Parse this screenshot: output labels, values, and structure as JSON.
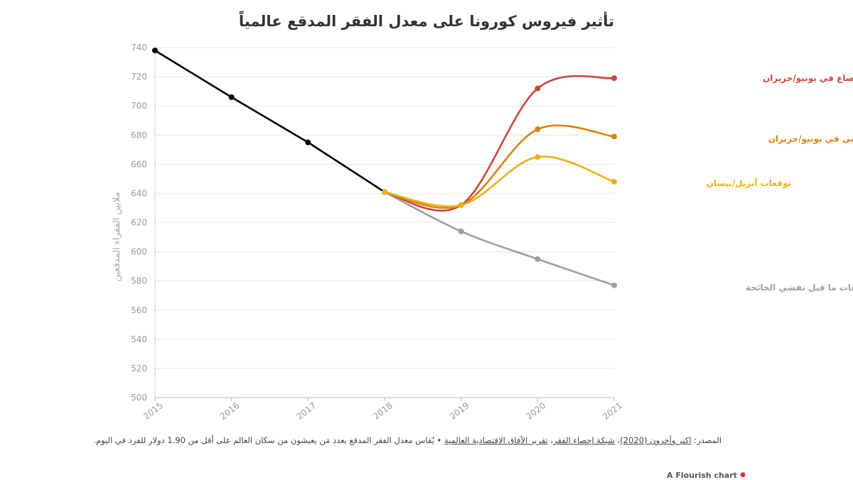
{
  "title": "تأثير فيروس كورونا على معدل الفقر المدقع عالمياً",
  "chart_data": {
    "type": "line",
    "title": "تأثير فيروس كورونا على معدل الفقر المدقع عالمياً",
    "ylabel": "ملايين الفقراء المدقعين",
    "xlabel": "",
    "x": [
      "2015",
      "2016",
      "2017",
      "2018",
      "2019",
      "2020",
      "2021"
    ],
    "ylim": [
      500,
      740
    ],
    "yticks": [
      500,
      520,
      540,
      560,
      580,
      600,
      620,
      640,
      660,
      680,
      700,
      720,
      740
    ],
    "grid": true,
    "legend": "labels at line ends (right)",
    "series": [
      {
        "name": "",
        "color": "#000000",
        "x": [
          "2015",
          "2016",
          "2017",
          "2018"
        ],
        "values": [
          738,
          706,
          675,
          641
        ]
      },
      {
        "name": "توقعات ما قبل تفشي الجائحة",
        "color": "#9e9e9e",
        "x": [
          "2018",
          "2019",
          "2020",
          "2021"
        ],
        "values": [
          641,
          614,
          595,
          577
        ]
      },
      {
        "name": "و تدهور الأوضاع في يونيو/حزيران",
        "color": "#c9473f",
        "x": [
          "2018",
          "2019",
          "2020",
          "2021"
        ],
        "values": [
          641,
          632,
          712,
          719
        ]
      },
      {
        "name": "سيناريو الأساسي في يونيو/حزيران",
        "color": "#de7f0e",
        "x": [
          "2018",
          "2019",
          "2020",
          "2021"
        ],
        "values": [
          641,
          632,
          684,
          679
        ]
      },
      {
        "name": "توقعات أبريل/نيسان",
        "color": "#ecb014",
        "x": [
          "2018",
          "2019",
          "2020",
          "2021"
        ],
        "values": [
          641,
          632,
          665,
          648
        ]
      }
    ]
  },
  "footnote": {
    "prefix": "المصدر: ",
    "src1": "اكنر وآخرون (2020)",
    "sep1": "، ",
    "src2": "شبكة إحصاء الفقر",
    "sep2": "، ",
    "src3": "تقرير الآفاق الاقتصادية العالمية",
    "note": " • يُقاس معدل الفقر المدقع بعدد مَن يعيشون من سكان العالم على أقل من 1.90 دولار للفرد في اليوم."
  },
  "brand": {
    "label": "A Flourish chart",
    "icon": "flourish-star-icon",
    "glyph": "✹"
  }
}
